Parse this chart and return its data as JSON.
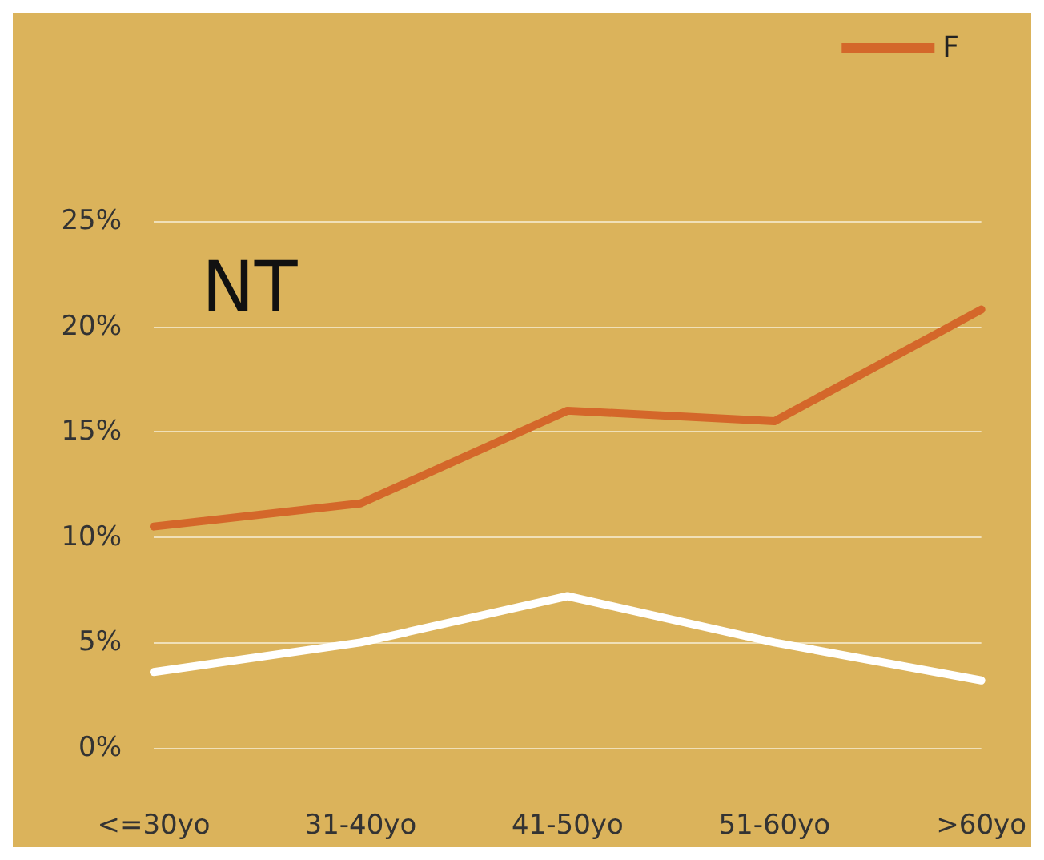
{
  "chart_data": {
    "type": "line",
    "annotations": [
      "NT"
    ],
    "categories": [
      "<=30yo",
      "31-40yo",
      "41-50yo",
      "51-60yo",
      ">60yo"
    ],
    "series": [
      {
        "name": "F",
        "color": "#d4672a",
        "values": [
          10.5,
          11.6,
          16.0,
          15.5,
          20.8
        ]
      },
      {
        "color": "#ffffff",
        "values": [
          3.6,
          5.0,
          7.2,
          5.0,
          3.2
        ]
      }
    ],
    "ylim": [
      0,
      25
    ],
    "yticks": [
      {
        "value": 0,
        "label": "0%"
      },
      {
        "value": 5,
        "label": "5%"
      },
      {
        "value": 10,
        "label": "10%"
      },
      {
        "value": 15,
        "label": "15%"
      },
      {
        "value": 20,
        "label": "20%"
      },
      {
        "value": 25,
        "label": "25%"
      }
    ],
    "grid": true,
    "legend": "top right",
    "marker": "none",
    "line_style": "solid"
  }
}
